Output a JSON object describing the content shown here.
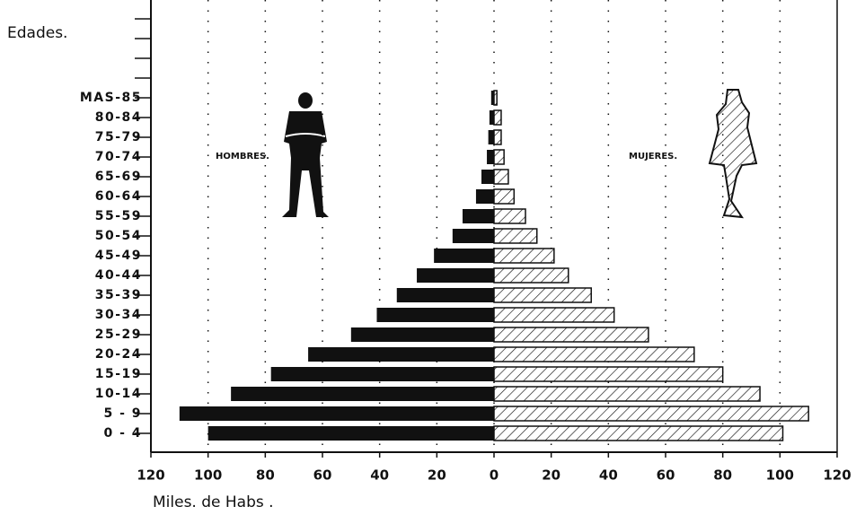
{
  "chart_data": {
    "type": "pyramid",
    "ylabel": "Edades.",
    "xlabel": "Miles. de Habs .",
    "categories": [
      "0 - 4",
      "5 - 9",
      "10-14",
      "15-19",
      "20-24",
      "25-29",
      "30-34",
      "35-39",
      "40-44",
      "45-49",
      "50-54",
      "55-59",
      "60-64",
      "65-69",
      "70-74",
      "75-79",
      "80-84",
      "MAS-85",
      null,
      null,
      null,
      null
    ],
    "series": [
      {
        "name": "HOMBRES.",
        "color": "#111111",
        "values": [
          100,
          110,
          92,
          78,
          65,
          50,
          41,
          34,
          27,
          21,
          14.5,
          11,
          6.3,
          4.4,
          2.5,
          2,
          1.6,
          1,
          null,
          null,
          null,
          null
        ]
      },
      {
        "name": "MUJERES.",
        "color": "#111111",
        "values": [
          101,
          110,
          93,
          80,
          70,
          54,
          42,
          34,
          26,
          21,
          15,
          11,
          7,
          5,
          3.5,
          2.5,
          2.5,
          1,
          null,
          null,
          null,
          null
        ]
      }
    ],
    "xlim": [
      -120,
      120
    ],
    "xticks": [
      {
        "value": -120,
        "label": "120"
      },
      {
        "value": -100,
        "label": "100"
      },
      {
        "value": -80,
        "label": "80"
      },
      {
        "value": -60,
        "label": "60"
      },
      {
        "value": -40,
        "label": "40"
      },
      {
        "value": -20,
        "label": "20"
      },
      0,
      20,
      40,
      60,
      80,
      100,
      120
    ],
    "grid": true
  }
}
